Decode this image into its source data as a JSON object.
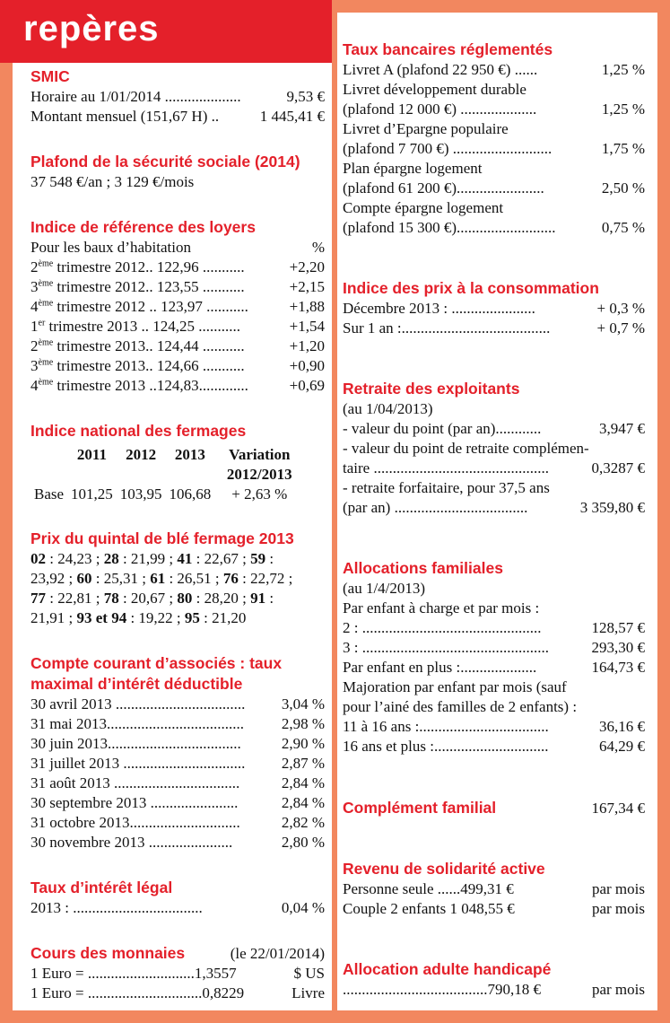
{
  "title": "repères",
  "left": {
    "sections": [
      {
        "heading": "SMIC",
        "rows": [
          {
            "label": "Horaire au 1/01/2014 ....................",
            "value": "9,53 €"
          },
          {
            "label": "Montant mensuel (151,67 H) ..",
            "value": "1 445,41 €"
          }
        ]
      },
      {
        "heading": "Plafond de la sécurité sociale (2014)",
        "rows": [
          {
            "text": "37 548 €/an ; 3 129 €/mois"
          }
        ]
      },
      {
        "heading": "Indice de référence des loyers",
        "rows": [
          {
            "label": "Pour les baux d’habitation",
            "value": "%"
          },
          {
            "n": "2",
            "sup": "ème",
            "label": "trimestre 2012.. 122,96 ...........",
            "value": "+2,20"
          },
          {
            "n": "3",
            "sup": "ème",
            "label": "trimestre 2012.. 123,55 ...........",
            "value": "+2,15"
          },
          {
            "n": "4",
            "sup": "ème",
            "label": "trimestre 2012 .. 123,97 ...........",
            "value": "+1,88"
          },
          {
            "n": "1",
            "sup": "er",
            "label": "trimestre 2013 .. 124,25 ...........",
            "value": "+1,54"
          },
          {
            "n": "2",
            "sup": "ème",
            "label": "trimestre 2013.. 124,44 ...........",
            "value": "+1,20"
          },
          {
            "n": "3",
            "sup": "ème",
            "label": "trimestre 2013.. 124,66 ...........",
            "value": "+0,90"
          },
          {
            "n": "4",
            "sup": "ème",
            "label": "trimestre 2013 ..124,83.............",
            "value": "+0,69"
          }
        ]
      },
      {
        "heading": "Indice national des fermages",
        "table": {
          "header": [
            "",
            "2011",
            "2012",
            "2013",
            "Variation 2012/2013"
          ],
          "rows": [
            [
              "Base",
              "101,25",
              "103,95",
              "106,68",
              "+ 2,63 %"
            ]
          ]
        }
      },
      {
        "heading": "Prix du quintal de blé fermage 2013",
        "paragraph": [
          [
            {
              "b": "02"
            },
            {
              "t": " : 24,23 ; "
            },
            {
              "b": "28"
            },
            {
              "t": " : 21,99 ; "
            },
            {
              "b": "41"
            },
            {
              "t": " : 22,67 ; "
            },
            {
              "b": "59"
            },
            {
              "t": " :"
            }
          ],
          [
            {
              "t": "23,92 ; "
            },
            {
              "b": "60"
            },
            {
              "t": " : 25,31 ; "
            },
            {
              "b": "61"
            },
            {
              "t": " : 26,51 ; "
            },
            {
              "b": "76"
            },
            {
              "t": " : 22,72 ;"
            }
          ],
          [
            {
              "b": "77"
            },
            {
              "t": " : 22,81 ; "
            },
            {
              "b": "78"
            },
            {
              "t": " : 20,67 ; "
            },
            {
              "b": "80"
            },
            {
              "t": " : 28,20 ; "
            },
            {
              "b": "91"
            },
            {
              "t": " :"
            }
          ],
          [
            {
              "t": "21,91 ; "
            },
            {
              "b": "93 et 94"
            },
            {
              "t": " : 19,22 ; "
            },
            {
              "b": "95"
            },
            {
              "t": " : 21,20"
            }
          ]
        ]
      },
      {
        "heading": "Compte courant d’associés : taux maximal d’intérêt déductible",
        "rows": [
          {
            "label": "30 avril 2013 ..................................",
            "value": "3,04 %"
          },
          {
            "label": "31 mai 2013....................................",
            "value": "2,98 %"
          },
          {
            "label": "30 juin 2013...................................",
            "value": "2,90 %"
          },
          {
            "label": "31 juillet 2013 ................................",
            "value": "2,87 %"
          },
          {
            "label": "31 août 2013 .................................",
            "value": "2,84 %"
          },
          {
            "label": "30 septembre 2013 .......................",
            "value": "2,84 %"
          },
          {
            "label": "31 octobre 2013.............................",
            "value": "2,82 %"
          },
          {
            "label": "30 novembre 2013 ......................",
            "value": "2,80 %"
          }
        ]
      },
      {
        "heading": "Taux d’intérêt légal",
        "rows": [
          {
            "label": "2013 :  ..................................",
            "value": "0,04 %"
          }
        ]
      },
      {
        "heading": "Cours des monnaies",
        "heading_note": "(le 22/01/2014)",
        "rows": [
          {
            "label": "1 Euro =  ............................1,3557",
            "value": "$ US"
          },
          {
            "label": "1 Euro = ..............................0,8229",
            "value": "Livre"
          }
        ]
      }
    ]
  },
  "right": {
    "sections": [
      {
        "heading": "Taux bancaires réglementés",
        "rows": [
          {
            "label": "Livret A (plafond 22 950 €) ......",
            "value": "1,25 %"
          },
          {
            "text": "Livret développement durable"
          },
          {
            "label": "(plafond 12 000 €) ....................",
            "value": "1,25 %"
          },
          {
            "text": "Livret d’Epargne populaire"
          },
          {
            "label": "(plafond 7 700  €) ..........................",
            "value": "1,75 %"
          },
          {
            "text": "Plan épargne logement"
          },
          {
            "label": "(plafond 61 200 €).......................",
            "value": "2,50 %"
          },
          {
            "text": "Compte épargne logement"
          },
          {
            "label": "(plafond 15 300 €)..........................",
            "value": "0,75 %"
          }
        ]
      },
      {
        "heading": "Indice des prix à la consommation",
        "rows": [
          {
            "label": "Décembre 2013  : ......................",
            "value": "+ 0,3 %"
          },
          {
            "label": "Sur 1 an :.......................................",
            "value": "+ 0,7 %"
          }
        ]
      },
      {
        "heading": "Retraite des exploitants",
        "rows": [
          {
            "text": "(au 1/04/2013)"
          },
          {
            "label": "- valeur du point (par an)............",
            "value": "3,947 €"
          },
          {
            "text": "- valeur du point de retraite complémen-"
          },
          {
            "label": "taire ..............................................",
            "value": "0,3287 €"
          },
          {
            "text": "- retraite forfaitaire, pour 37,5 ans"
          },
          {
            "label": "(par an) ...................................",
            "value": "3 359,80 €"
          }
        ]
      },
      {
        "heading": "Allocations  familiales",
        "rows": [
          {
            "text": "(au 1/4/2013)"
          },
          {
            "text": "Par enfant à charge et par mois :"
          },
          {
            "label": "2 :  ...............................................",
            "value": "128,57 €"
          },
          {
            "label": "3 : .................................................",
            "value": "293,30 €"
          },
          {
            "label": "Par enfant en plus :....................",
            "value": "164,73 €"
          },
          {
            "text": "Majoration par enfant par mois (sauf"
          },
          {
            "text": "pour l’ainé des familles de 2 enfants) :"
          },
          {
            "label": "11 à 16 ans :..................................",
            "value": "36,16 €"
          },
          {
            "label": "16 ans et plus :..............................",
            "value": "64,29 €"
          }
        ]
      },
      {
        "heading": "Complément familial",
        "heading_value": "167,34 €"
      },
      {
        "heading": "Revenu de solidarité active",
        "rows": [
          {
            "label": "Personne seule ......499,31 €",
            "value": "par mois"
          },
          {
            "label": "Couple 2 enfants 1 048,55 €",
            "value": "par mois"
          }
        ]
      },
      {
        "heading": "Allocation adulte handicapé",
        "rows": [
          {
            "label": "......................................790,18 €",
            "value": "par mois"
          }
        ]
      }
    ]
  }
}
